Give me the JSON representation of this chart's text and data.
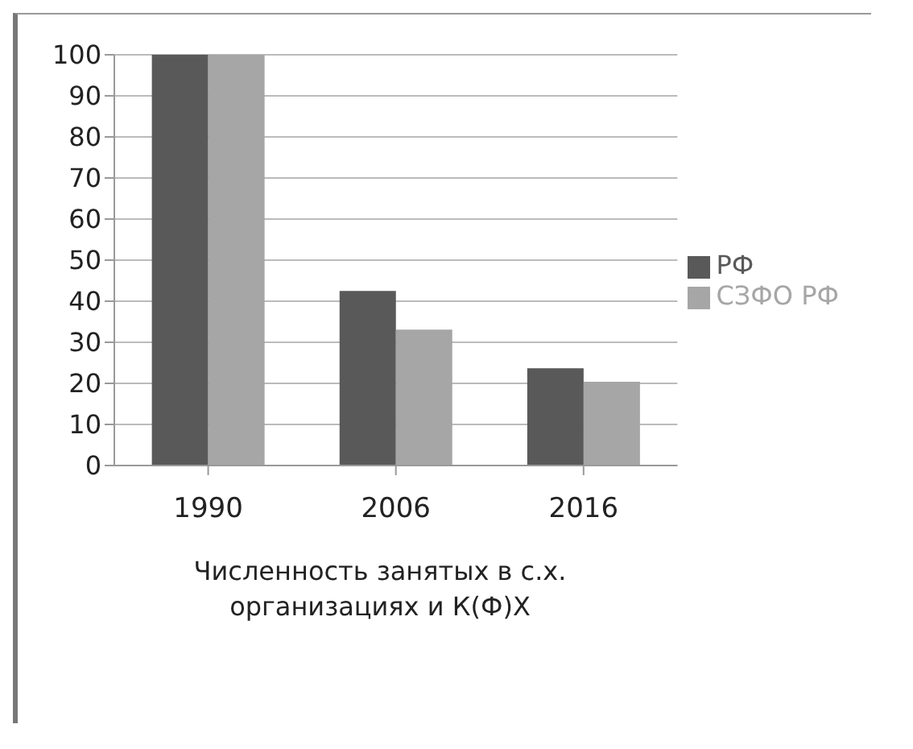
{
  "chart_data": {
    "type": "bar",
    "categories": [
      "1990",
      "2006",
      "2016"
    ],
    "xlabel": "Численность занятых в с.х. организациях и К(Ф)Х",
    "series": [
      {
        "name": "РФ",
        "color": "#595959",
        "values": [
          100,
          42.5,
          23.7
        ]
      },
      {
        "name": "СЗФО РФ",
        "color": "#a6a6a6",
        "values": [
          100,
          33.1,
          20.4
        ]
      }
    ],
    "ylim": [
      0,
      100
    ],
    "yticks": [
      0,
      10,
      20,
      30,
      40,
      50,
      60,
      70,
      80,
      90,
      100
    ],
    "grid": "y",
    "legend": "right"
  }
}
